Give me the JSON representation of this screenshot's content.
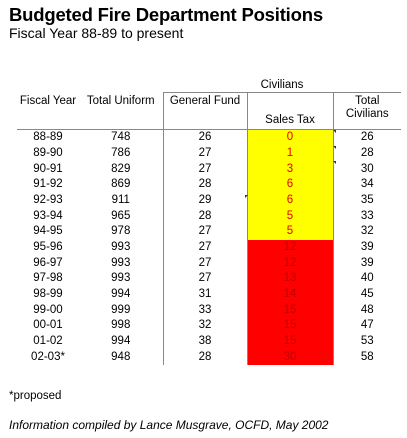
{
  "title": "Budgeted Fire Department Positions",
  "subtitle": "Fiscal Year 88-89 to present",
  "table": {
    "group_header": "Civilians",
    "headers": {
      "fiscal_year": "Fiscal Year",
      "total_uniform": "Total Uniform",
      "general_fund": "General Fund",
      "sales_tax": "Sales Tax",
      "total_civilians": "Total Civilians"
    },
    "colors": {
      "yellow": "#ffff00",
      "red": "#ff0000",
      "yellow_text": "#e60000",
      "red_text": "#c00000"
    },
    "rows": [
      {
        "fy": "88-89",
        "uniform": "748",
        "general": "26",
        "sales": "0",
        "total_civ": "26",
        "highlight": "yellow",
        "marker": "right"
      },
      {
        "fy": "89-90",
        "uniform": "786",
        "general": "27",
        "sales": "1",
        "total_civ": "28",
        "highlight": "yellow",
        "marker": "right"
      },
      {
        "fy": "90-91",
        "uniform": "829",
        "general": "27",
        "sales": "3",
        "total_civ": "30",
        "highlight": "yellow",
        "marker": "right"
      },
      {
        "fy": "91-92",
        "uniform": "869",
        "general": "28",
        "sales": "6",
        "total_civ": "34",
        "highlight": "yellow",
        "marker": ""
      },
      {
        "fy": "92-93",
        "uniform": "911",
        "general": "29",
        "sales": "6",
        "total_civ": "35",
        "highlight": "yellow",
        "marker": "left"
      },
      {
        "fy": "93-94",
        "uniform": "965",
        "general": "28",
        "sales": "5",
        "total_civ": "33",
        "highlight": "yellow",
        "marker": ""
      },
      {
        "fy": "94-95",
        "uniform": "978",
        "general": "27",
        "sales": "5",
        "total_civ": "32",
        "highlight": "yellow",
        "marker": ""
      },
      {
        "fy": "95-96",
        "uniform": "993",
        "general": "27",
        "sales": "12",
        "total_civ": "39",
        "highlight": "red",
        "marker": ""
      },
      {
        "fy": "96-97",
        "uniform": "993",
        "general": "27",
        "sales": "12",
        "total_civ": "39",
        "highlight": "red",
        "marker": ""
      },
      {
        "fy": "97-98",
        "uniform": "993",
        "general": "27",
        "sales": "13",
        "total_civ": "40",
        "highlight": "red",
        "marker": ""
      },
      {
        "fy": "98-99",
        "uniform": "994",
        "general": "31",
        "sales": "14",
        "total_civ": "45",
        "highlight": "red",
        "marker": ""
      },
      {
        "fy": "99-00",
        "uniform": "999",
        "general": "33",
        "sales": "15",
        "total_civ": "48",
        "highlight": "red",
        "marker": ""
      },
      {
        "fy": "00-01",
        "uniform": "998",
        "general": "32",
        "sales": "15",
        "total_civ": "47",
        "highlight": "red",
        "marker": ""
      },
      {
        "fy": "01-02",
        "uniform": "994",
        "general": "38",
        "sales": "15",
        "total_civ": "53",
        "highlight": "red",
        "marker": ""
      },
      {
        "fy": "02-03*",
        "uniform": "948",
        "general": "28",
        "sales": "30",
        "total_civ": "58",
        "highlight": "red",
        "marker": ""
      }
    ]
  },
  "footnote": "*proposed",
  "credit": "Information compiled by Lance Musgrave, OCFD, May 2002"
}
